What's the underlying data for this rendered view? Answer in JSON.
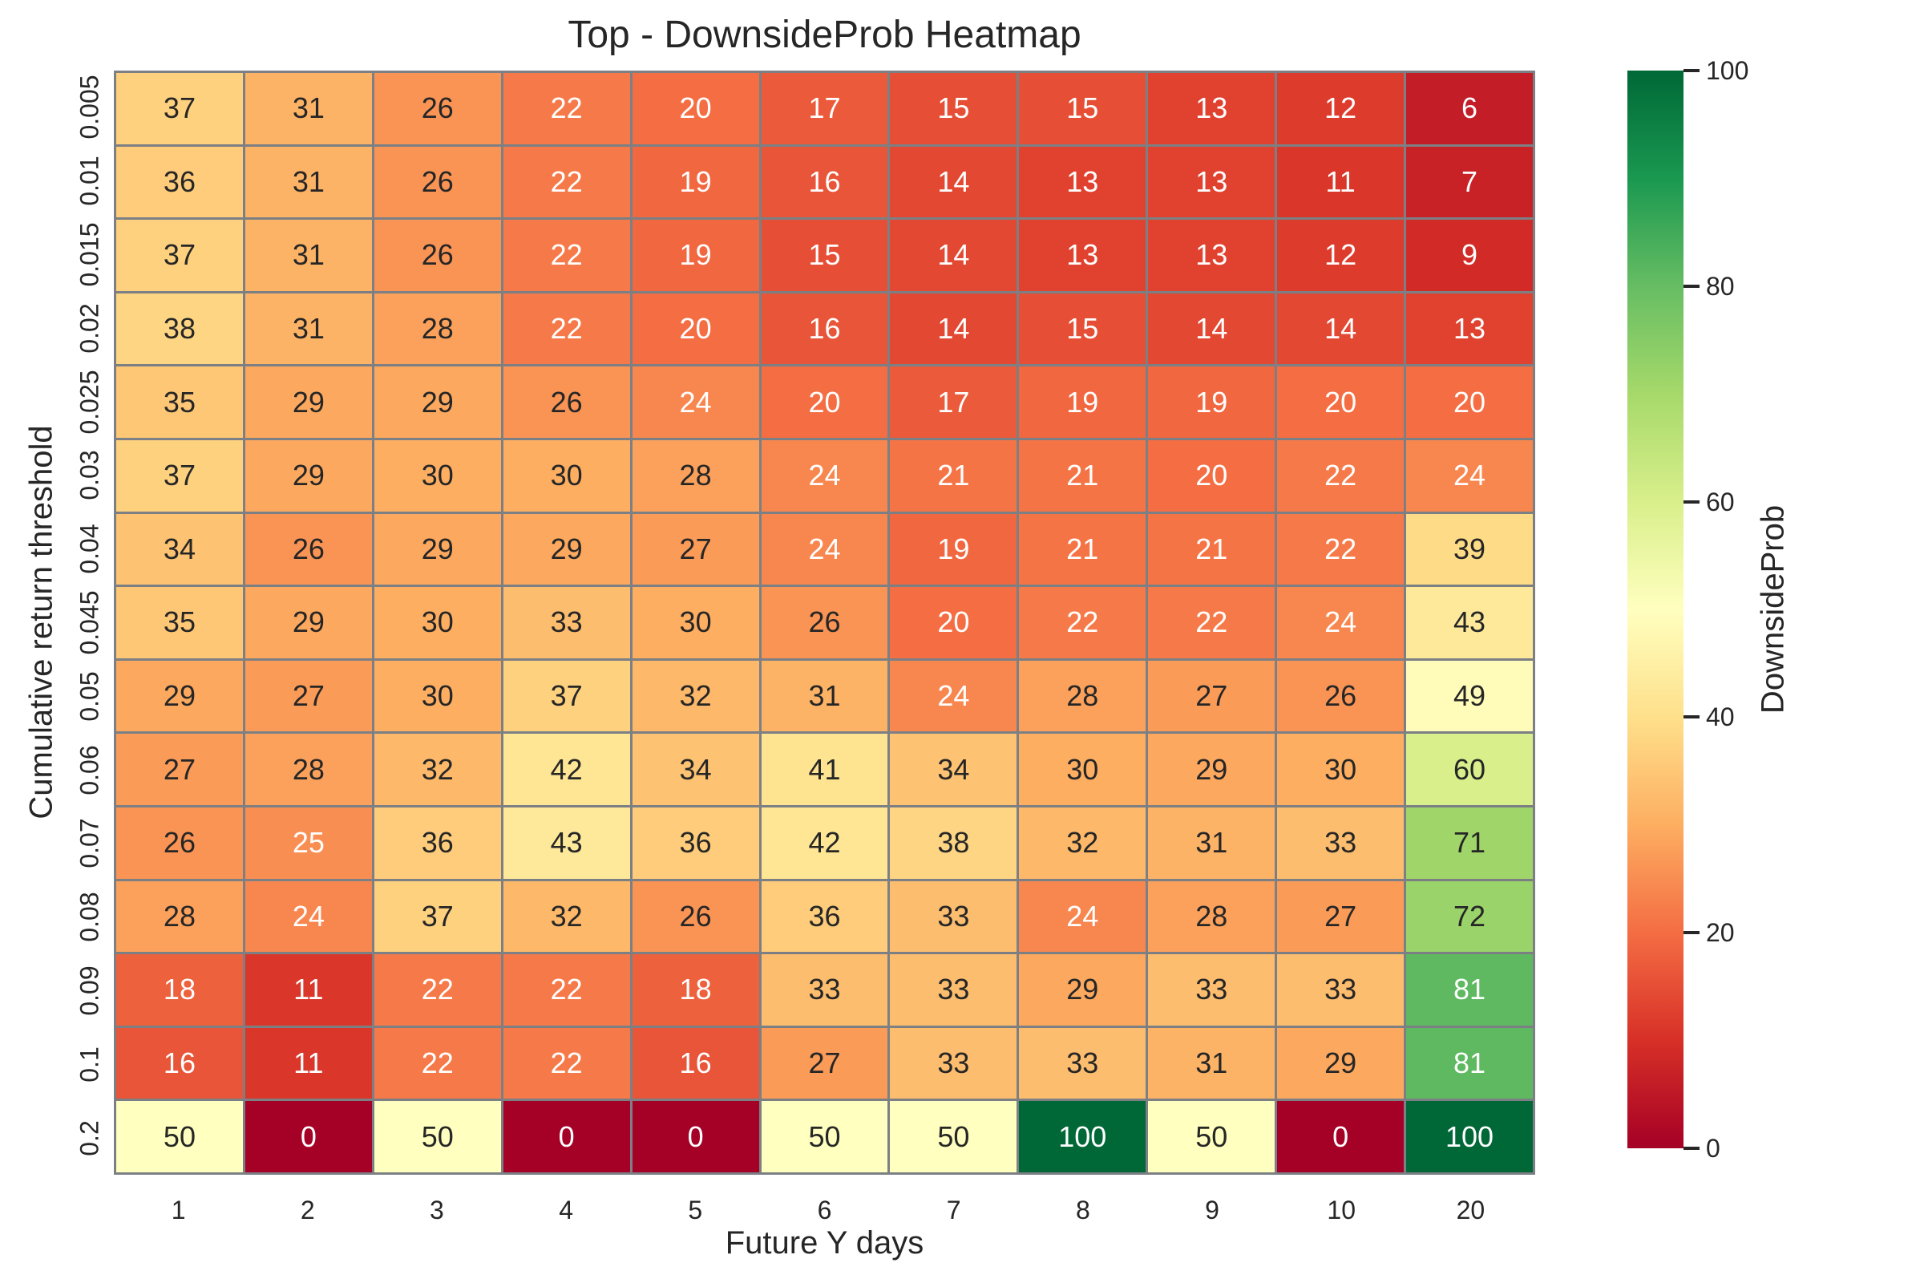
{
  "title": "Top - DownsideProb Heatmap",
  "style": {
    "colormap_name": "RdYlGn",
    "colormap_stops": [
      "#a50026",
      "#d73027",
      "#f46d43",
      "#fdae61",
      "#fee08b",
      "#ffffbf",
      "#d9ef8b",
      "#a6d96a",
      "#66bd63",
      "#1a9850",
      "#006837"
    ],
    "grid_line_color": "#7c8084",
    "annotation_dark_text": "#262626",
    "annotation_light_text": "#ffffff",
    "luminance_threshold": 0.408,
    "background": "#ffffff"
  },
  "chart_data": {
    "type": "heatmap",
    "title": "Top - DownsideProb Heatmap",
    "xlabel": "Future Y days",
    "ylabel": "Cumulative return threshold",
    "value_label": "DownsideProb",
    "x_categories": [
      "1",
      "2",
      "3",
      "4",
      "5",
      "6",
      "7",
      "8",
      "9",
      "10",
      "20"
    ],
    "y_categories": [
      "0.005",
      "0.01",
      "0.015",
      "0.02",
      "0.025",
      "0.03",
      "0.04",
      "0.045",
      "0.05",
      "0.06",
      "0.07",
      "0.08",
      "0.09",
      "0.1",
      "0.2"
    ],
    "vmin": 0,
    "vmax": 100,
    "colormap": "RdYlGn",
    "grid": true,
    "legend_position": "right-colorbar",
    "colorbar_ticks": [
      0,
      20,
      40,
      60,
      80,
      100
    ],
    "values": [
      [
        37,
        31,
        26,
        22,
        20,
        17,
        15,
        15,
        13,
        12,
        6
      ],
      [
        36,
        31,
        26,
        22,
        19,
        16,
        14,
        13,
        13,
        11,
        7
      ],
      [
        37,
        31,
        26,
        22,
        19,
        15,
        14,
        13,
        13,
        12,
        9
      ],
      [
        38,
        31,
        28,
        22,
        20,
        16,
        14,
        15,
        14,
        14,
        13
      ],
      [
        35,
        29,
        29,
        26,
        24,
        20,
        17,
        19,
        19,
        20,
        20
      ],
      [
        37,
        29,
        30,
        30,
        28,
        24,
        21,
        21,
        20,
        22,
        24
      ],
      [
        34,
        26,
        29,
        29,
        27,
        24,
        19,
        21,
        21,
        22,
        39
      ],
      [
        35,
        29,
        30,
        33,
        30,
        26,
        20,
        22,
        22,
        24,
        43
      ],
      [
        29,
        27,
        30,
        37,
        32,
        31,
        24,
        28,
        27,
        26,
        49
      ],
      [
        27,
        28,
        32,
        42,
        34,
        41,
        34,
        30,
        29,
        30,
        60
      ],
      [
        26,
        25,
        36,
        43,
        36,
        42,
        38,
        32,
        31,
        33,
        71
      ],
      [
        28,
        24,
        37,
        32,
        26,
        36,
        33,
        24,
        28,
        27,
        72
      ],
      [
        18,
        11,
        22,
        22,
        18,
        33,
        33,
        29,
        33,
        33,
        81
      ],
      [
        16,
        11,
        22,
        22,
        16,
        27,
        33,
        33,
        31,
        29,
        81
      ],
      [
        50,
        0,
        50,
        0,
        0,
        50,
        50,
        100,
        50,
        0,
        100
      ]
    ]
  }
}
